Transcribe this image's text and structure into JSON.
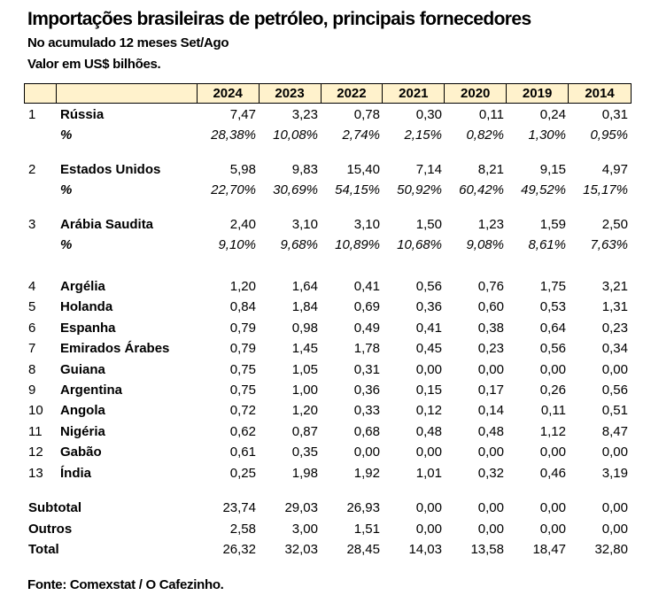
{
  "title": "Importações brasileiras de petróleo, principais fornecedores",
  "subtitle1": "No acumulado 12 meses Set/Ago",
  "subtitle2": "Valor em US$ bilhões.",
  "header_color": "#fff2cc",
  "columns": [
    "2024",
    "2023",
    "2022",
    "2021",
    "2020",
    "2019",
    "2014"
  ],
  "top_rows": [
    {
      "rank": "1",
      "name": "Rússia",
      "values": [
        "7,47",
        "3,23",
        "0,78",
        "0,30",
        "0,11",
        "0,24",
        "0,31"
      ],
      "pct_label": "%",
      "pct": [
        "28,38%",
        "10,08%",
        "2,74%",
        "2,15%",
        "0,82%",
        "1,30%",
        "0,95%"
      ]
    },
    {
      "rank": "2",
      "name": "Estados Unidos",
      "values": [
        "5,98",
        "9,83",
        "15,40",
        "7,14",
        "8,21",
        "9,15",
        "4,97"
      ],
      "pct_label": "%",
      "pct": [
        "22,70%",
        "30,69%",
        "54,15%",
        "50,92%",
        "60,42%",
        "49,52%",
        "15,17%"
      ]
    },
    {
      "rank": "3",
      "name": "Arábia Saudita",
      "values": [
        "2,40",
        "3,10",
        "3,10",
        "1,50",
        "1,23",
        "1,59",
        "2,50"
      ],
      "pct_label": "%",
      "pct": [
        "9,10%",
        "9,68%",
        "10,89%",
        "10,68%",
        "9,08%",
        "8,61%",
        "7,63%"
      ]
    }
  ],
  "rows": [
    {
      "rank": "4",
      "name": "Argélia",
      "values": [
        "1,20",
        "1,64",
        "0,41",
        "0,56",
        "0,76",
        "1,75",
        "3,21"
      ]
    },
    {
      "rank": "5",
      "name": "Holanda",
      "values": [
        "0,84",
        "1,84",
        "0,69",
        "0,36",
        "0,60",
        "0,53",
        "1,31"
      ]
    },
    {
      "rank": "6",
      "name": "Espanha",
      "values": [
        "0,79",
        "0,98",
        "0,49",
        "0,41",
        "0,38",
        "0,64",
        "0,23"
      ]
    },
    {
      "rank": "7",
      "name": "Emirados Árabes",
      "values": [
        "0,79",
        "1,45",
        "1,78",
        "0,45",
        "0,23",
        "0,56",
        "0,34"
      ]
    },
    {
      "rank": "8",
      "name": "Guiana",
      "values": [
        "0,75",
        "1,05",
        "0,31",
        "0,00",
        "0,00",
        "0,00",
        "0,00"
      ]
    },
    {
      "rank": "9",
      "name": "Argentina",
      "values": [
        "0,75",
        "1,00",
        "0,36",
        "0,15",
        "0,17",
        "0,26",
        "0,56"
      ]
    },
    {
      "rank": "10",
      "name": "Angola",
      "values": [
        "0,72",
        "1,20",
        "0,33",
        "0,12",
        "0,14",
        "0,11",
        "0,51"
      ]
    },
    {
      "rank": "11",
      "name": "Nigéria",
      "values": [
        "0,62",
        "0,87",
        "0,68",
        "0,48",
        "0,48",
        "1,12",
        "8,47"
      ]
    },
    {
      "rank": "12",
      "name": "Gabão",
      "values": [
        "0,61",
        "0,35",
        "0,00",
        "0,00",
        "0,00",
        "0,00",
        "0,00"
      ]
    },
    {
      "rank": "13",
      "name": "Índia",
      "values": [
        "0,25",
        "1,98",
        "1,92",
        "1,01",
        "0,32",
        "0,46",
        "3,19"
      ]
    }
  ],
  "summary": [
    {
      "name": "Subtotal",
      "values": [
        "23,74",
        "29,03",
        "26,93",
        "0,00",
        "0,00",
        "0,00",
        "0,00"
      ]
    },
    {
      "name": "Outros",
      "values": [
        "2,58",
        "3,00",
        "1,51",
        "0,00",
        "0,00",
        "0,00",
        "0,00"
      ]
    },
    {
      "name": "Total",
      "values": [
        "26,32",
        "32,03",
        "28,45",
        "14,03",
        "13,58",
        "18,47",
        "32,80"
      ]
    }
  ],
  "source": "Fonte: Comexstat / O Cafezinho."
}
